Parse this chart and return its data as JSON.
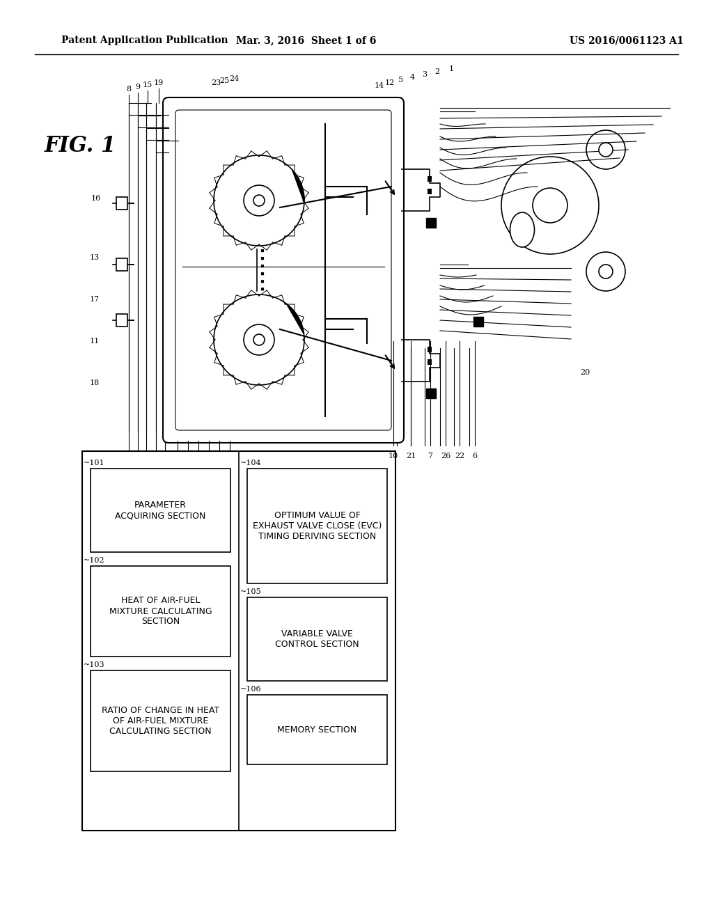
{
  "bg_color": "#ffffff",
  "header_left": "Patent Application Publication",
  "header_center": "Mar. 3, 2016  Sheet 1 of 6",
  "header_right": "US 2016/0061123 A1",
  "fig_label": "FIG. 1",
  "box_labels": {
    "101": "PARAMETER\nACQUIRING SECTION",
    "102": "HEAT OF AIR-FUEL\nMIXTURE CALCULATING\nSECTION",
    "103": "RATIO OF CHANGE IN HEAT\nOF AIR-FUEL MIXTURE\nCALCULATING SECTION",
    "104": "OPTIMUM VALUE OF\nEXHAUST VALVE CLOSE (EVC)\nTIMING DERIVING SECTION",
    "105": "VARIABLE VALVE\nCONTROL SECTION",
    "106": "MEMORY SECTION"
  },
  "label_refs": {
    "101_ref": "~101",
    "102_ref": "~102",
    "103_ref": "~103",
    "104_ref": "~104",
    "105_ref": "~105",
    "106_ref": "~106"
  }
}
